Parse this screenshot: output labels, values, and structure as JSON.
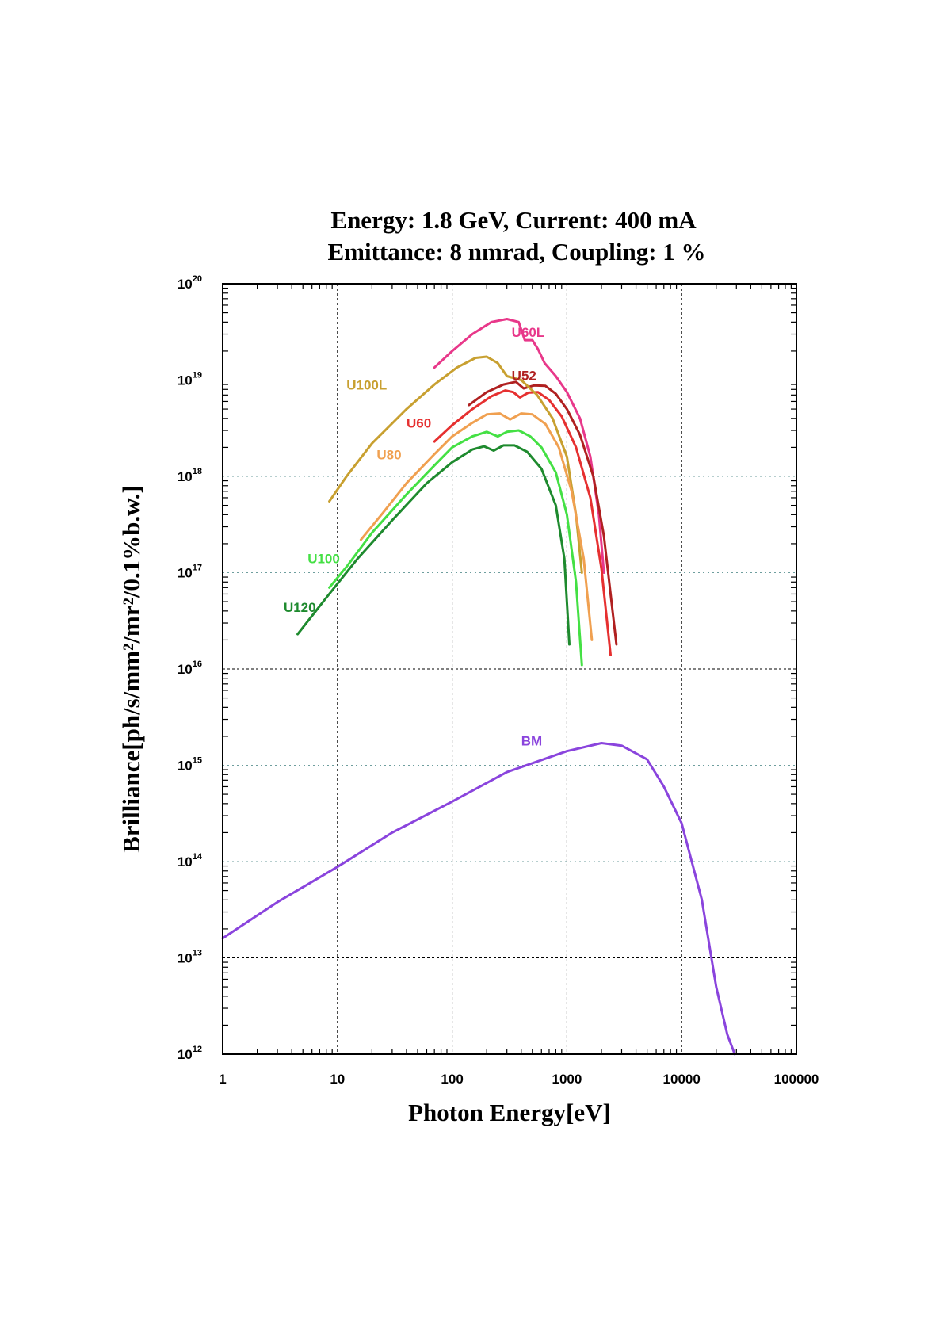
{
  "chart_data": {
    "type": "line",
    "title": [
      "Energy: 1.8 GeV, Current: 400 mA",
      "Emittance: 8 nmrad, Coupling: 1 %"
    ],
    "xlabel": "Photon Energy[eV]",
    "ylabel": "Brilliance[ph/s/mm²/mr²/0.1%b.w.]",
    "x_scale": "log",
    "y_scale": "log",
    "xlim": [
      1,
      100000
    ],
    "ylim": [
      1000000000000.0,
      1e+20
    ],
    "x_ticks": [
      {
        "value": 1,
        "label": "1"
      },
      {
        "value": 10,
        "label": "10"
      },
      {
        "value": 100,
        "label": "100"
      },
      {
        "value": 1000,
        "label": "1000"
      },
      {
        "value": 10000,
        "label": "10000"
      },
      {
        "value": 100000,
        "label": "100000"
      }
    ],
    "y_ticks": [
      {
        "value": 1000000000000.0,
        "base": "10",
        "exp": "12"
      },
      {
        "value": 10000000000000.0,
        "base": "10",
        "exp": "13"
      },
      {
        "value": 100000000000000.0,
        "base": "10",
        "exp": "14"
      },
      {
        "value": 1000000000000000.0,
        "base": "10",
        "exp": "15"
      },
      {
        "value": 1e+16,
        "base": "10",
        "exp": "16"
      },
      {
        "value": 1e+17,
        "base": "10",
        "exp": "17"
      },
      {
        "value": 1e+18,
        "base": "10",
        "exp": "18"
      },
      {
        "value": 1e+19,
        "base": "10",
        "exp": "19"
      },
      {
        "value": 1e+20,
        "base": "10",
        "exp": "20"
      }
    ],
    "grid": true,
    "series": [
      {
        "name": "U60L",
        "color": "#e8388a",
        "label_at": [
          330,
          2.8e+19
        ],
        "points": [
          [
            70,
            1.35e+19
          ],
          [
            100,
            2e+19
          ],
          [
            150,
            3e+19
          ],
          [
            220,
            4e+19
          ],
          [
            300,
            4.3e+19
          ],
          [
            380,
            4e+19
          ],
          [
            430,
            2.6e+19
          ],
          [
            500,
            2.6e+19
          ],
          [
            560,
            2.1e+19
          ],
          [
            640,
            1.5e+19
          ],
          [
            800,
            1.1e+19
          ],
          [
            1000,
            7.5e+18
          ],
          [
            1300,
            4e+18
          ],
          [
            1600,
            1.6e+18
          ],
          [
            1900,
            4e+17
          ],
          [
            2100,
            1e+17
          ]
        ]
      },
      {
        "name": "U52",
        "color": "#b02020",
        "label_at": [
          330,
          1e+19
        ],
        "points": [
          [
            140,
            5.5e+18
          ],
          [
            200,
            7.5e+18
          ],
          [
            280,
            9e+18
          ],
          [
            360,
            9.6e+18
          ],
          [
            420,
            8.2e+18
          ],
          [
            520,
            8.8e+18
          ],
          [
            650,
            8.7e+18
          ],
          [
            800,
            7.2e+18
          ],
          [
            1000,
            5e+18
          ],
          [
            1300,
            2.7e+18
          ],
          [
            1700,
            1e+18
          ],
          [
            2100,
            2.4e+17
          ],
          [
            2500,
            4e+16
          ],
          [
            2700,
            1.8e+16
          ]
        ]
      },
      {
        "name": "U60",
        "color": "#e63030",
        "label_at": [
          40,
          3.2e+18
        ],
        "points": [
          [
            70,
            2.3e+18
          ],
          [
            100,
            3.4e+18
          ],
          [
            150,
            5e+18
          ],
          [
            220,
            6.8e+18
          ],
          [
            290,
            7.8e+18
          ],
          [
            340,
            7.5e+18
          ],
          [
            390,
            6.6e+18
          ],
          [
            460,
            7.4e+18
          ],
          [
            560,
            7.5e+18
          ],
          [
            700,
            6.2e+18
          ],
          [
            900,
            4.2e+18
          ],
          [
            1200,
            2e+18
          ],
          [
            1600,
            6e+17
          ],
          [
            2000,
            1.1e+17
          ],
          [
            2400,
            1.4e+16
          ]
        ]
      },
      {
        "name": "U100L",
        "color": "#c8a030",
        "label_at": [
          12,
          8e+18
        ],
        "points": [
          [
            8.5,
            5.5e+17
          ],
          [
            12,
            1e+18
          ],
          [
            20,
            2.2e+18
          ],
          [
            40,
            5e+18
          ],
          [
            70,
            9e+18
          ],
          [
            110,
            1.35e+19
          ],
          [
            160,
            1.7e+19
          ],
          [
            200,
            1.75e+19
          ],
          [
            250,
            1.5e+19
          ],
          [
            300,
            1.1e+19
          ],
          [
            400,
            1e+19
          ],
          [
            550,
            7e+18
          ],
          [
            750,
            4e+18
          ],
          [
            1000,
            1.6e+18
          ],
          [
            1200,
            4e+17
          ],
          [
            1350,
            1e+17
          ]
        ]
      },
      {
        "name": "U80",
        "color": "#f0a050",
        "label_at": [
          22,
          1.5e+18
        ],
        "points": [
          [
            16,
            2.2e+17
          ],
          [
            25,
            4.2e+17
          ],
          [
            40,
            8.5e+17
          ],
          [
            70,
            1.7e+18
          ],
          [
            100,
            2.6e+18
          ],
          [
            150,
            3.6e+18
          ],
          [
            200,
            4.4e+18
          ],
          [
            260,
            4.5e+18
          ],
          [
            320,
            3.9e+18
          ],
          [
            400,
            4.5e+18
          ],
          [
            500,
            4.4e+18
          ],
          [
            650,
            3.5e+18
          ],
          [
            850,
            2e+18
          ],
          [
            1100,
            7e+17
          ],
          [
            1400,
            1.4e+17
          ],
          [
            1650,
            2e+16
          ]
        ]
      },
      {
        "name": "U100",
        "color": "#44e044",
        "label_at": [
          5.5,
          1.25e+17
        ],
        "points": [
          [
            8.5,
            7e+16
          ],
          [
            12,
            1.15e+17
          ],
          [
            20,
            2.6e+17
          ],
          [
            40,
            6.5e+17
          ],
          [
            70,
            1.3e+18
          ],
          [
            100,
            2e+18
          ],
          [
            150,
            2.6e+18
          ],
          [
            200,
            2.9e+18
          ],
          [
            250,
            2.6e+18
          ],
          [
            300,
            2.9e+18
          ],
          [
            380,
            3e+18
          ],
          [
            480,
            2.6e+18
          ],
          [
            600,
            2e+18
          ],
          [
            800,
            1.1e+18
          ],
          [
            1000,
            4e+17
          ],
          [
            1200,
            8e+16
          ],
          [
            1350,
            1.1e+16
          ]
        ]
      },
      {
        "name": "U120",
        "color": "#1e8a2e",
        "label_at": [
          3.4,
          3.9e+16
        ],
        "points": [
          [
            4.5,
            2.3e+16
          ],
          [
            8,
            5.5e+16
          ],
          [
            15,
            1.4e+17
          ],
          [
            30,
            3.5e+17
          ],
          [
            60,
            8.5e+17
          ],
          [
            100,
            1.4e+18
          ],
          [
            150,
            1.9e+18
          ],
          [
            190,
            2.05e+18
          ],
          [
            230,
            1.85e+18
          ],
          [
            280,
            2.1e+18
          ],
          [
            350,
            2.1e+18
          ],
          [
            450,
            1.8e+18
          ],
          [
            600,
            1.2e+18
          ],
          [
            800,
            5e+17
          ],
          [
            950,
            1.4e+17
          ],
          [
            1050,
            1.8e+16
          ]
        ]
      },
      {
        "name": "BM",
        "color": "#8a44dd",
        "label_at": [
          400,
          1600000000000000.0
        ],
        "points": [
          [
            1,
            16000000000000.0
          ],
          [
            3,
            38000000000000.0
          ],
          [
            10,
            88000000000000.0
          ],
          [
            30,
            200000000000000.0
          ],
          [
            100,
            420000000000000.0
          ],
          [
            300,
            850000000000000.0
          ],
          [
            1000,
            1400000000000000.0
          ],
          [
            2000,
            1700000000000000.0
          ],
          [
            3000,
            1600000000000000.0
          ],
          [
            5000,
            1150000000000000.0
          ],
          [
            7000,
            600000000000000.0
          ],
          [
            10000,
            250000000000000.0
          ],
          [
            15000,
            40000000000000.0
          ],
          [
            20000,
            5000000000000.0
          ],
          [
            25000,
            1600000000000.0
          ],
          [
            29000,
            1000000000000.0
          ]
        ]
      }
    ]
  }
}
